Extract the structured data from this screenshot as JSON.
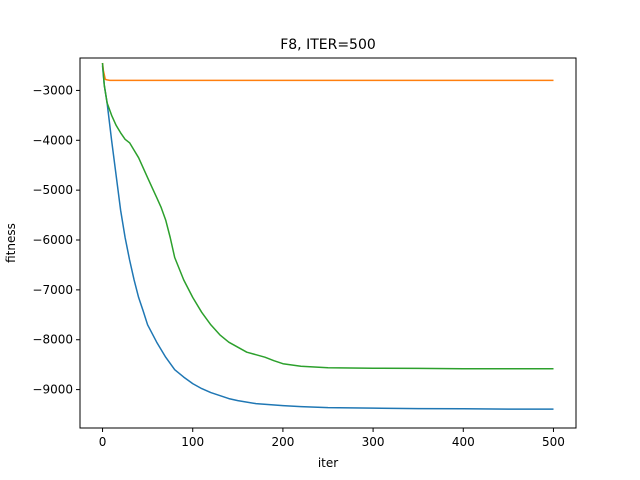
{
  "chart_data": {
    "type": "line",
    "title": "F8, ITER=500",
    "xlabel": "iter",
    "ylabel": "fitness",
    "xlim": [
      -25,
      525
    ],
    "ylim": [
      -9770,
      -2350
    ],
    "xticks": [
      0,
      100,
      200,
      300,
      400,
      500
    ],
    "xtick_labels": [
      "0",
      "100",
      "200",
      "300",
      "400",
      "500"
    ],
    "yticks": [
      -3000,
      -4000,
      -5000,
      -6000,
      -7000,
      -8000,
      -9000
    ],
    "ytick_labels": [
      "−3000",
      "−4000",
      "−5000",
      "−6000",
      "−7000",
      "−8000",
      "−9000"
    ],
    "grid": false,
    "series": [
      {
        "color": "#1f77b4",
        "x": [
          0,
          2,
          5,
          10,
          15,
          20,
          25,
          30,
          35,
          40,
          45,
          50,
          60,
          70,
          80,
          90,
          100,
          110,
          120,
          130,
          140,
          150,
          170,
          200,
          220,
          250,
          300,
          350,
          400,
          450,
          500
        ],
        "y": [
          -2500,
          -2900,
          -3250,
          -4000,
          -4700,
          -5400,
          -5950,
          -6400,
          -6800,
          -7150,
          -7420,
          -7700,
          -8050,
          -8350,
          -8600,
          -8750,
          -8880,
          -8980,
          -9060,
          -9120,
          -9180,
          -9220,
          -9280,
          -9320,
          -9340,
          -9360,
          -9370,
          -9380,
          -9385,
          -9390,
          -9390
        ]
      },
      {
        "color": "#ff7f0e",
        "x": [
          0,
          1,
          3,
          5,
          8,
          12,
          20,
          50,
          100,
          200,
          300,
          400,
          500
        ],
        "y": [
          -2450,
          -2600,
          -2780,
          -2790,
          -2800,
          -2800,
          -2800,
          -2800,
          -2800,
          -2800,
          -2800,
          -2800,
          -2800
        ]
      },
      {
        "color": "#2ca02c",
        "x": [
          0,
          2,
          5,
          10,
          15,
          20,
          25,
          30,
          35,
          40,
          45,
          50,
          55,
          60,
          65,
          70,
          75,
          80,
          90,
          100,
          110,
          120,
          130,
          140,
          150,
          160,
          170,
          180,
          190,
          200,
          220,
          250,
          300,
          350,
          400,
          450,
          500
        ],
        "y": [
          -2450,
          -2900,
          -3250,
          -3500,
          -3700,
          -3850,
          -3980,
          -4050,
          -4200,
          -4350,
          -4550,
          -4750,
          -4950,
          -5150,
          -5350,
          -5600,
          -5950,
          -6350,
          -6800,
          -7150,
          -7450,
          -7700,
          -7900,
          -8050,
          -8150,
          -8250,
          -8300,
          -8350,
          -8420,
          -8480,
          -8530,
          -8560,
          -8570,
          -8575,
          -8580,
          -8580,
          -8580
        ]
      }
    ]
  }
}
